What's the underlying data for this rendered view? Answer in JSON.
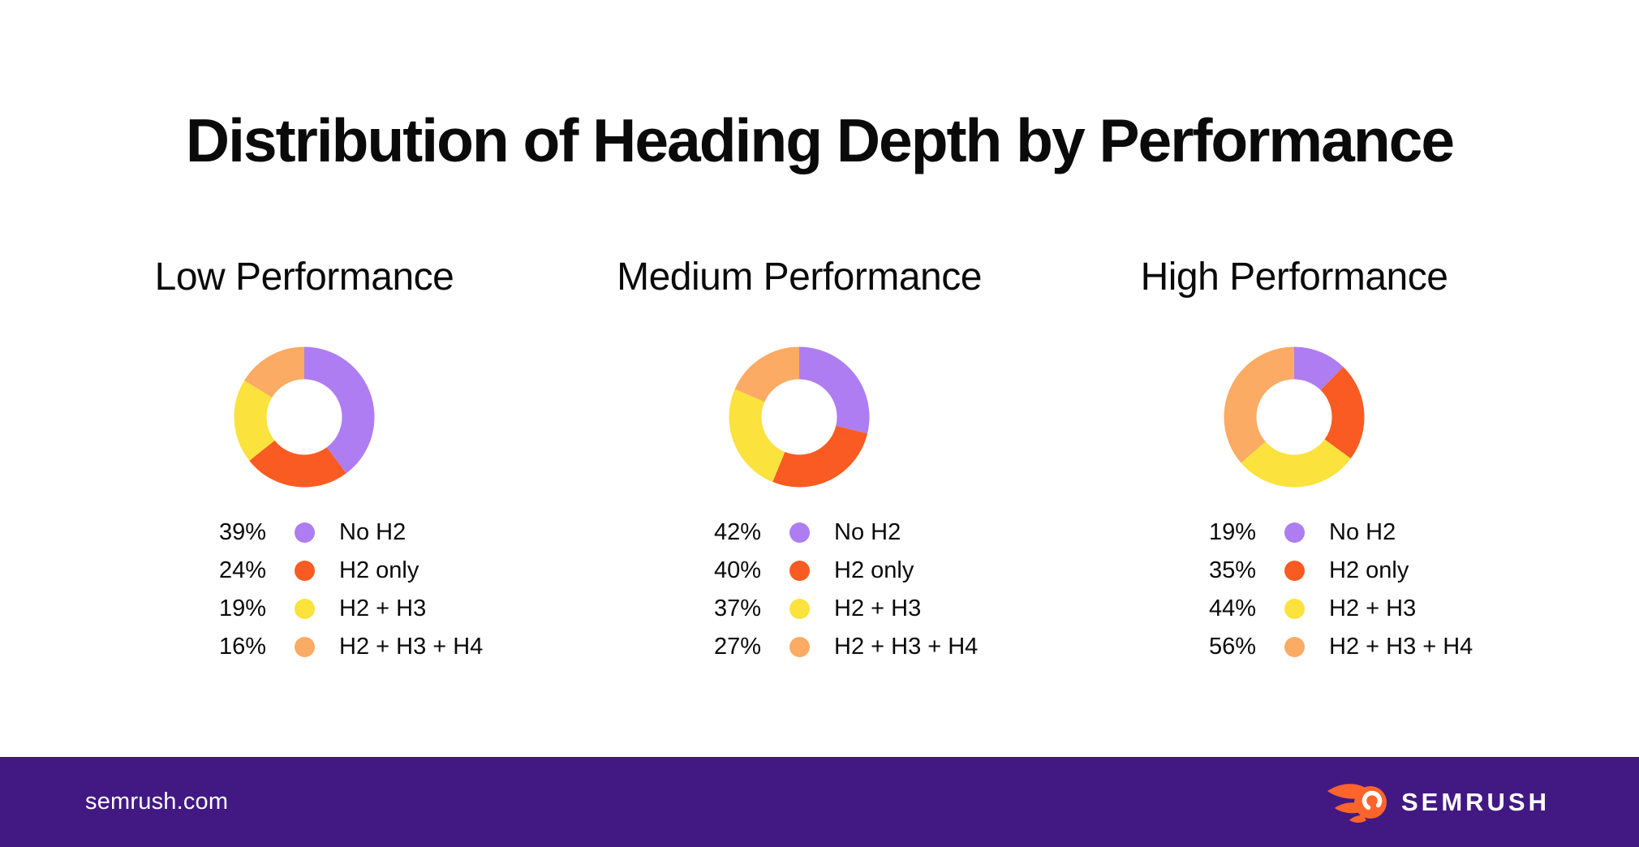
{
  "page": {
    "title": "Distribution of Heading Depth by Performance"
  },
  "colors": {
    "background": "#FFFFFF",
    "text": "#0A0A0A",
    "footer_background": "#421983",
    "footer_text": "#FFFFFF",
    "logo_orange": "#FF642D",
    "segments": [
      "#AE7DF2",
      "#F95B22",
      "#FBE23D",
      "#FBAB63"
    ]
  },
  "chart_data": [
    {
      "type": "pie",
      "variant": "donut",
      "title": "Low Performance",
      "categories": [
        "No H2",
        "H2 only",
        "H2 + H3",
        "H2 + H3 + H4"
      ],
      "values": [
        39,
        24,
        19,
        16
      ],
      "value_labels": [
        "39%",
        "24%",
        "19%",
        "16%"
      ],
      "segment_colors": [
        "#AE7DF2",
        "#F95B22",
        "#FBE23D",
        "#FBAB63"
      ],
      "start_angle_deg": 0,
      "direction": "clockwise",
      "legend_position": "below"
    },
    {
      "type": "pie",
      "variant": "donut",
      "title": "Medium Performance",
      "categories": [
        "No H2",
        "H2 only",
        "H2 + H3",
        "H2 + H3 + H4"
      ],
      "values": [
        42,
        40,
        37,
        27
      ],
      "value_labels": [
        "42%",
        "40%",
        "37%",
        "27%"
      ],
      "segment_colors": [
        "#AE7DF2",
        "#F95B22",
        "#FBE23D",
        "#FBAB63"
      ],
      "start_angle_deg": 0,
      "direction": "clockwise",
      "legend_position": "below"
    },
    {
      "type": "pie",
      "variant": "donut",
      "title": "High Performance",
      "categories": [
        "No H2",
        "H2 only",
        "H2 + H3",
        "H2 + H3 + H4"
      ],
      "values": [
        19,
        35,
        44,
        56
      ],
      "value_labels": [
        "19%",
        "35%",
        "44%",
        "56%"
      ],
      "segment_colors": [
        "#AE7DF2",
        "#F95B22",
        "#FBE23D",
        "#FBAB63"
      ],
      "start_angle_deg": 0,
      "direction": "clockwise",
      "legend_position": "below"
    }
  ],
  "footer": {
    "website": "semrush.com",
    "logo_text": "SEMRUSH",
    "logo_icon": "semrush-flame-icon"
  }
}
